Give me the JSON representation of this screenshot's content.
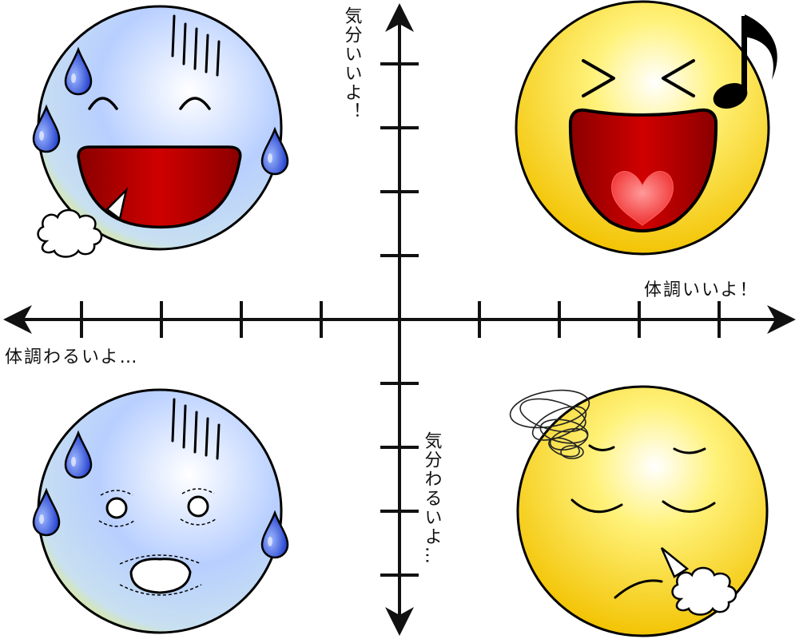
{
  "labels": {
    "x_positive": "体調いいよ！",
    "x_negative": "体調わるいよ…",
    "y_positive": "気分いいよ！",
    "y_negative": "気分わるいよ…"
  },
  "quadrants": {
    "top_left": "laughing-sweating-face",
    "top_right": "singing-happy-face",
    "bottom_left": "shocked-sweating-face",
    "bottom_right": "dizzy-sighing-face"
  },
  "colors": {
    "yellow": "#FFD700",
    "blue": "#B8D0FF",
    "mouth_red": "#B00000",
    "sweat_blue": "#1E40D8",
    "axis": "#111111"
  }
}
